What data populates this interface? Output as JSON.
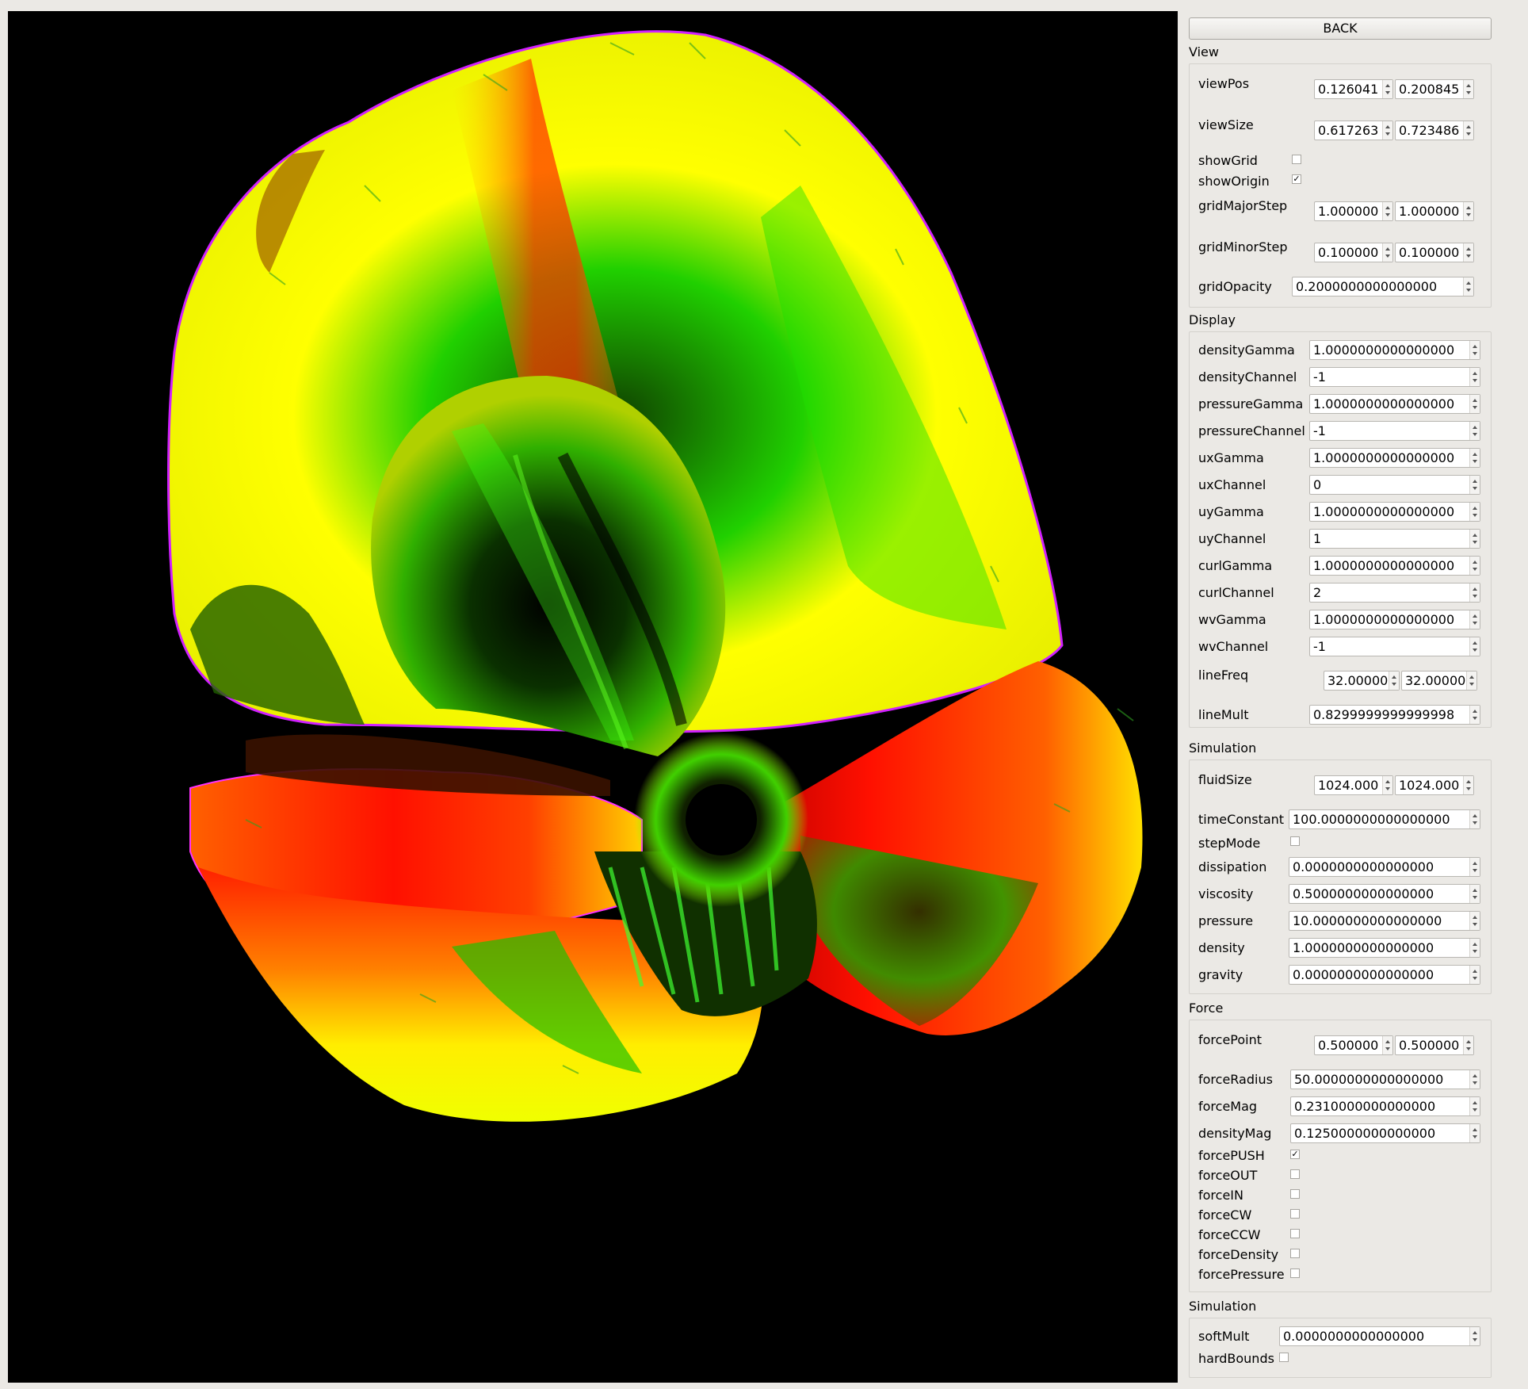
{
  "back_label": "BACK",
  "view": {
    "title": "View",
    "viewPos": {
      "label": "viewPos",
      "x": "0.126041",
      "y": "0.200845"
    },
    "viewSize": {
      "label": "viewSize",
      "x": "0.617263",
      "y": "0.723486"
    },
    "showGrid": {
      "label": "showGrid",
      "checked": false
    },
    "showOrigin": {
      "label": "showOrigin",
      "checked": true
    },
    "gridMajorStep": {
      "label": "gridMajorStep",
      "x": "1.000000",
      "y": "1.000000"
    },
    "gridMinorStep": {
      "label": "gridMinorStep",
      "x": "0.100000",
      "y": "0.100000"
    },
    "gridOpacity": {
      "label": "gridOpacity",
      "value": "0.2000000000000000"
    }
  },
  "display": {
    "title": "Display",
    "rows": [
      {
        "label": "densityGamma",
        "value": "1.0000000000000000"
      },
      {
        "label": "densityChannel",
        "value": "-1"
      },
      {
        "label": "pressureGamma",
        "value": "1.0000000000000000"
      },
      {
        "label": "pressureChannel",
        "value": "-1"
      },
      {
        "label": "uxGamma",
        "value": "1.0000000000000000"
      },
      {
        "label": "uxChannel",
        "value": "0"
      },
      {
        "label": "uyGamma",
        "value": "1.0000000000000000"
      },
      {
        "label": "uyChannel",
        "value": "1"
      },
      {
        "label": "curlGamma",
        "value": "1.0000000000000000"
      },
      {
        "label": "curlChannel",
        "value": "2"
      },
      {
        "label": "wvGamma",
        "value": "1.0000000000000000"
      },
      {
        "label": "wvChannel",
        "value": "-1"
      }
    ],
    "lineFreq": {
      "label": "lineFreq",
      "x": "32.000000",
      "y": "32.000000"
    },
    "lineMult": {
      "label": "lineMult",
      "value": "0.8299999999999998"
    }
  },
  "simulation": {
    "title": "Simulation",
    "fluidSize": {
      "label": "fluidSize",
      "x": "1024.000",
      "y": "1024.000"
    },
    "timeConstant": {
      "label": "timeConstant",
      "value": "100.0000000000000000"
    },
    "stepMode": {
      "label": "stepMode",
      "checked": false
    },
    "rows": [
      {
        "label": "dissipation",
        "value": "0.0000000000000000"
      },
      {
        "label": "viscosity",
        "value": "0.5000000000000000"
      },
      {
        "label": "pressure",
        "value": "10.0000000000000000"
      },
      {
        "label": "density",
        "value": "1.0000000000000000"
      },
      {
        "label": "gravity",
        "value": "0.0000000000000000"
      }
    ]
  },
  "force": {
    "title": "Force",
    "forcePoint": {
      "label": "forcePoint",
      "x": "0.500000",
      "y": "0.500000"
    },
    "rows": [
      {
        "label": "forceRadius",
        "value": "50.0000000000000000"
      },
      {
        "label": "forceMag",
        "value": "0.2310000000000000"
      },
      {
        "label": "densityMag",
        "value": "0.1250000000000000"
      }
    ],
    "checks": [
      {
        "label": "forcePUSH",
        "checked": true
      },
      {
        "label": "forceOUT",
        "checked": false
      },
      {
        "label": "forceIN",
        "checked": false
      },
      {
        "label": "forceCW",
        "checked": false
      },
      {
        "label": "forceCCW",
        "checked": false
      },
      {
        "label": "forceDensity",
        "checked": false
      },
      {
        "label": "forcePressure",
        "checked": false
      }
    ]
  },
  "simulation2": {
    "title": "Simulation",
    "softMult": {
      "label": "softMult",
      "value": "0.0000000000000000"
    },
    "hardBounds": {
      "label": "hardBounds",
      "checked": false
    }
  }
}
